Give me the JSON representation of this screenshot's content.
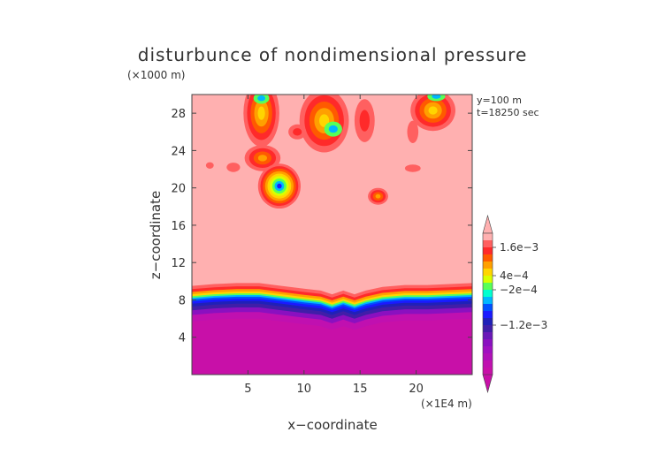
{
  "chart_data": {
    "type": "heatmap",
    "title": "disturbunce of nondimensional pressure",
    "y_unit": "(×1000 m)",
    "x_unit": "(×1E4 m)",
    "xlabel": "x−coordinate",
    "ylabel": "z−coordinate",
    "annotations": [
      "y=100  m",
      "t=18250 sec"
    ],
    "xlim": [
      0,
      25
    ],
    "ylim": [
      0,
      30
    ],
    "x_ticks": [
      5,
      10,
      15,
      20
    ],
    "x_tick_labels": [
      "5",
      "10",
      "15",
      "20"
    ],
    "y_ticks": [
      4,
      8,
      12,
      16,
      20,
      24,
      28
    ],
    "y_tick_labels": [
      "4",
      "8",
      "12",
      "16",
      "20",
      "24",
      "28"
    ],
    "colorbar": {
      "levels": [
        {
          "color": "#ffb0b0"
        },
        {
          "color": "#ff6060"
        },
        {
          "color": "#ff2a2a"
        },
        {
          "color": "#ff5a00"
        },
        {
          "color": "#ffa000"
        },
        {
          "color": "#ffd500"
        },
        {
          "color": "#d8ff00"
        },
        {
          "color": "#58ff58"
        },
        {
          "color": "#00ffd0"
        },
        {
          "color": "#00b6ff"
        },
        {
          "color": "#0050ff"
        },
        {
          "color": "#1a1aff"
        },
        {
          "color": "#2020b8"
        },
        {
          "color": "#401ea8"
        },
        {
          "color": "#6a18b8"
        },
        {
          "color": "#8a10c0"
        },
        {
          "color": "#a010c0"
        },
        {
          "color": "#b010b8"
        },
        {
          "color": "#c010b0"
        },
        {
          "color": "#c810a8"
        }
      ],
      "labels": [
        {
          "text": "1.6e−3",
          "level_index": 1
        },
        {
          "text": "4e−4",
          "level_index": 5
        },
        {
          "text": "−2e−4",
          "level_index": 7
        },
        {
          "text": "−1.2e−3",
          "level_index": 12
        }
      ],
      "over_color": "#ffb0b0",
      "under_color": "#c810a8"
    },
    "fields": {
      "background_level": 0,
      "bottom_layer": {
        "boundary_profile": [
          [
            0,
            9.5
          ],
          [
            2,
            9.7
          ],
          [
            4,
            9.8
          ],
          [
            6,
            9.8
          ],
          [
            8,
            9.5
          ],
          [
            10,
            9.2
          ],
          [
            11.5,
            9.0
          ],
          [
            12.5,
            8.6
          ],
          [
            13.5,
            9.0
          ],
          [
            14.5,
            8.6
          ],
          [
            15.5,
            9.0
          ],
          [
            17,
            9.4
          ],
          [
            19,
            9.6
          ],
          [
            21,
            9.6
          ],
          [
            23,
            9.7
          ],
          [
            25,
            9.8
          ]
        ],
        "band_levels": [
          1,
          2,
          4,
          5,
          7,
          9,
          10,
          11,
          12,
          13,
          15,
          18,
          19
        ],
        "band_depth": [
          0.35,
          0.3,
          0.25,
          0.2,
          0.18,
          0.18,
          0.2,
          0.25,
          0.3,
          0.4,
          0.5,
          0.7,
          0.9
        ],
        "fill_level": 19
      },
      "blobs": [
        {
          "cx": 6.2,
          "cy": 28.0,
          "rx": 1.6,
          "ry": 3.6,
          "levels": [
            1,
            2,
            3,
            4,
            5
          ]
        },
        {
          "cx": 6.2,
          "cy": 29.6,
          "rx": 0.7,
          "ry": 0.6,
          "levels": [
            7,
            9
          ]
        },
        {
          "cx": 6.3,
          "cy": 23.2,
          "rx": 1.6,
          "ry": 1.4,
          "levels": [
            1,
            2,
            3,
            4
          ]
        },
        {
          "cx": 7.8,
          "cy": 20.2,
          "rx": 1.9,
          "ry": 2.4,
          "levels": [
            1,
            2,
            3,
            4,
            5,
            6,
            7,
            9,
            11
          ]
        },
        {
          "cx": 11.8,
          "cy": 27.2,
          "rx": 2.2,
          "ry": 3.4,
          "levels": [
            1,
            2,
            3,
            4,
            5
          ]
        },
        {
          "cx": 12.6,
          "cy": 26.3,
          "rx": 0.8,
          "ry": 0.8,
          "levels": [
            7,
            9
          ]
        },
        {
          "cx": 9.4,
          "cy": 26.0,
          "rx": 0.8,
          "ry": 0.8,
          "levels": [
            1,
            2
          ]
        },
        {
          "cx": 15.4,
          "cy": 27.2,
          "rx": 0.9,
          "ry": 2.3,
          "levels": [
            1,
            2
          ]
        },
        {
          "cx": 21.5,
          "cy": 28.3,
          "rx": 2.0,
          "ry": 2.2,
          "levels": [
            1,
            2,
            3,
            4,
            5
          ]
        },
        {
          "cx": 21.8,
          "cy": 29.8,
          "rx": 0.8,
          "ry": 0.5,
          "levels": [
            7,
            9
          ]
        },
        {
          "cx": 19.7,
          "cy": 26.0,
          "rx": 0.5,
          "ry": 1.2,
          "levels": [
            1
          ]
        },
        {
          "cx": 16.6,
          "cy": 19.1,
          "rx": 0.9,
          "ry": 0.9,
          "levels": [
            1,
            2,
            3,
            4
          ]
        },
        {
          "cx": 19.7,
          "cy": 22.1,
          "rx": 0.7,
          "ry": 0.4,
          "levels": [
            1
          ]
        },
        {
          "cx": 3.7,
          "cy": 22.2,
          "rx": 0.6,
          "ry": 0.5,
          "levels": [
            1
          ]
        },
        {
          "cx": 1.6,
          "cy": 22.4,
          "rx": 0.35,
          "ry": 0.35,
          "levels": [
            1
          ]
        }
      ]
    }
  }
}
